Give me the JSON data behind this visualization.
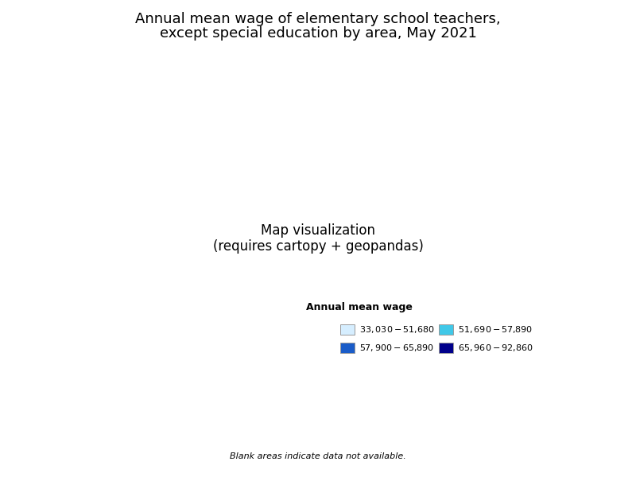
{
  "title_line1": "Annual mean wage of elementary school teachers,",
  "title_line2": "except special education by area, May 2021",
  "legend_title": "Annual mean wage",
  "legend_labels": [
    "$33,030 - $51,680",
    "$51,690 - $57,890",
    "$57,900 - $65,890",
    "$65,960 - $92,860"
  ],
  "legend_colors": [
    "#d6eeff",
    "#40c8e8",
    "#1a5cc8",
    "#00008b"
  ],
  "blank_note": "Blank areas indicate data not available.",
  "wage_bins": [
    33030,
    51680,
    57890,
    65890,
    92860
  ],
  "background_color": "#ffffff",
  "figsize": [
    8.0,
    6.0
  ],
  "dpi": 100,
  "title_fontsize": 13,
  "legend_title_fontsize": 9,
  "legend_fontsize": 8,
  "note_fontsize": 8
}
